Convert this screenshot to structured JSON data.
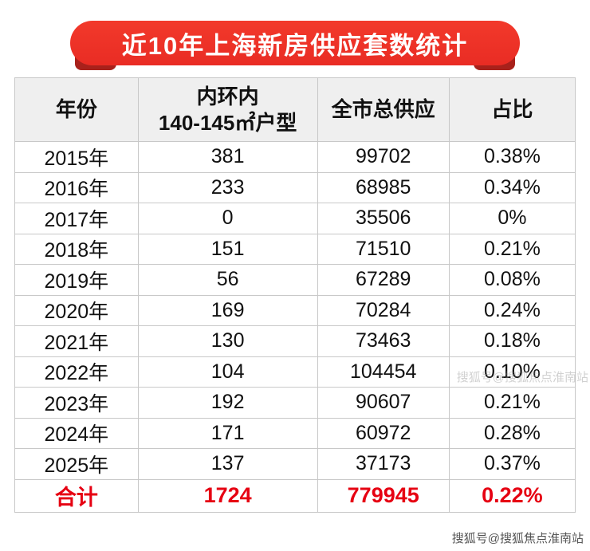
{
  "banner": {
    "title": "近10年上海新房供应套数统计"
  },
  "table": {
    "header": {
      "year": "年份",
      "inner_line1": "内环内",
      "inner_line2": "140-145㎡户型",
      "citywide": "全市总供应",
      "share": "占比"
    }
  },
  "chart_data": {
    "type": "table",
    "title": "近10年上海新房供应套数统计",
    "columns": [
      "年份",
      "内环内140-145㎡户型",
      "全市总供应",
      "占比"
    ],
    "rows": [
      [
        "2015年",
        "381",
        "99702",
        "0.38%"
      ],
      [
        "2016年",
        "233",
        "68985",
        "0.34%"
      ],
      [
        "2017年",
        "0",
        "35506",
        "0%"
      ],
      [
        "2018年",
        "151",
        "71510",
        "0.21%"
      ],
      [
        "2019年",
        "56",
        "67289",
        "0.08%"
      ],
      [
        "2020年",
        "169",
        "70284",
        "0.24%"
      ],
      [
        "2021年",
        "130",
        "73463",
        "0.18%"
      ],
      [
        "2022年",
        "104",
        "104454",
        "0.10%"
      ],
      [
        "2023年",
        "192",
        "90607",
        "0.21%"
      ],
      [
        "2024年",
        "171",
        "60972",
        "0.28%"
      ],
      [
        "2025年",
        "137",
        "37173",
        "0.37%"
      ]
    ],
    "total_row": [
      "合计",
      "1724",
      "779945",
      "0.22%"
    ]
  },
  "watermark": {
    "inline": "搜狐号@搜狐焦点淮南站",
    "footer": "搜狐号@搜狐焦点淮南站"
  },
  "colors": {
    "ribbon_red": "#ee3226",
    "ribbon_fold": "#a8211b",
    "total_red": "#e60012",
    "header_bg": "#efefef",
    "border": "#c8c8c8",
    "text": "#111111"
  }
}
